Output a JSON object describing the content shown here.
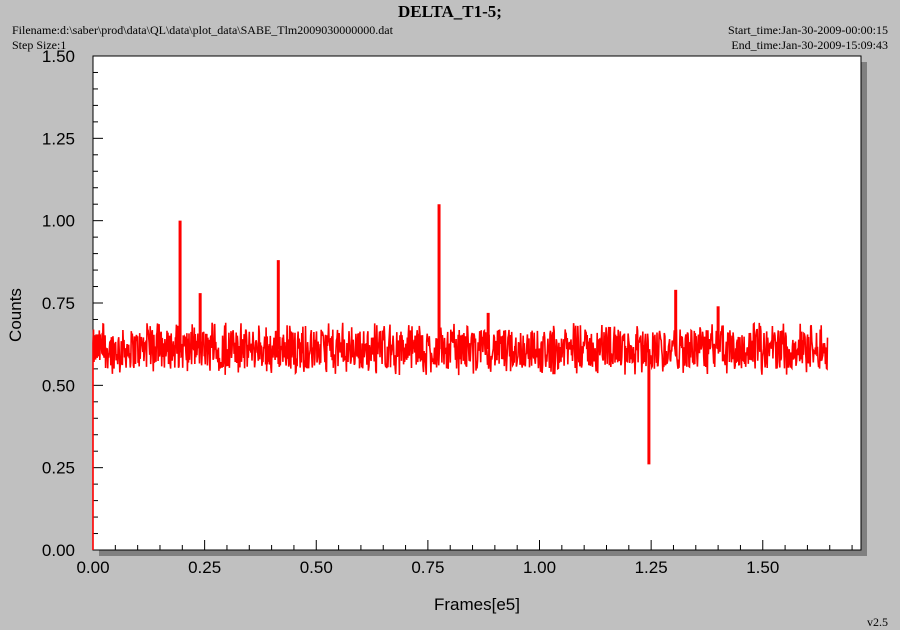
{
  "header": {
    "title": "DELTA_T1-5;",
    "filename": "Filename:d:\\saber\\prod\\data\\QL\\data\\plot_data\\SABE_Tlm2009030000000.dat",
    "step_size": "Step Size:1",
    "start_time": "Start_time:Jan-30-2009-00:00:15",
    "end_time": "End_time:Jan-30-2009-15:09:43",
    "version": "v2.5"
  },
  "chart_data": {
    "type": "line",
    "title": "DELTA_T1-5;",
    "xlabel": "Frames[e5]",
    "ylabel": "Counts",
    "xlim": [
      0,
      1.72
    ],
    "ylim": [
      0,
      1.5
    ],
    "x_ticks": [
      "0.00",
      "0.25",
      "0.50",
      "0.75",
      "1.00",
      "1.25",
      "1.50"
    ],
    "y_ticks": [
      "0.00",
      "0.25",
      "0.50",
      "0.75",
      "1.00",
      "1.25",
      "1.50"
    ],
    "grid": false,
    "series": [
      {
        "color": "#ff0000",
        "x_range": [
          0,
          1.645
        ],
        "baseline_band": [
          0.53,
          0.69
        ],
        "start_point": [
          0,
          0
        ],
        "spikes": [
          {
            "x": 0.195,
            "y": 1.0
          },
          {
            "x": 0.24,
            "y": 0.78
          },
          {
            "x": 0.415,
            "y": 0.88
          },
          {
            "x": 0.775,
            "y": 1.05
          },
          {
            "x": 0.885,
            "y": 0.72
          },
          {
            "x": 1.245,
            "y": 0.26
          },
          {
            "x": 1.305,
            "y": 0.79
          },
          {
            "x": 1.4,
            "y": 0.74
          }
        ]
      }
    ]
  }
}
